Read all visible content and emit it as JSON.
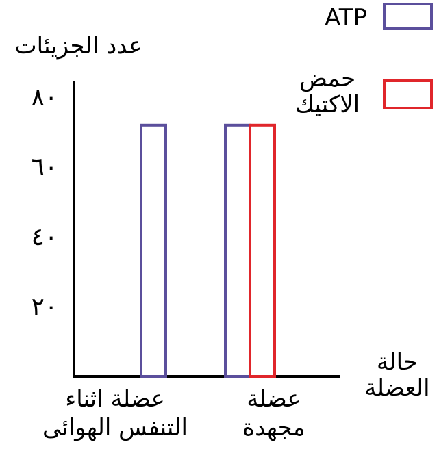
{
  "chart_data": {
    "type": "bar",
    "ylabel": "عدد الجزيئات",
    "xlabel": [
      "حالة",
      "العضلة"
    ],
    "yticks": [
      "٢٠",
      "٤٠",
      "٦٠",
      "٨٠"
    ],
    "ytick_values": [
      20,
      40,
      60,
      80
    ],
    "ylim": [
      0,
      80
    ],
    "categories": [
      [
        "عضلة اثناء",
        "التنفس الهوائى"
      ],
      [
        "عضلة",
        "مجهدة"
      ]
    ],
    "series": [
      {
        "name": "ATP",
        "values": [
          72,
          72
        ],
        "color": "#5b4f9c"
      },
      {
        "name": [
          "حمض",
          "الاكتيك"
        ],
        "values": [
          null,
          72
        ],
        "color": "#e0262b"
      }
    ],
    "legend_position": "top-right",
    "grid": false
  }
}
